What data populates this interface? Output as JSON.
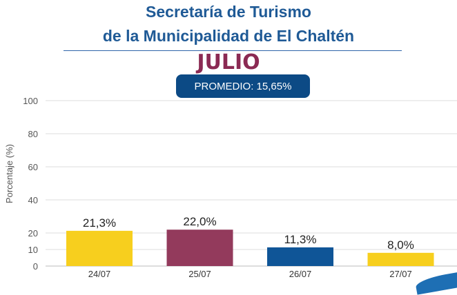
{
  "header": {
    "title_line1": "Secretaría de Turismo",
    "title_line2": "de la Municipalidad de El Chaltén",
    "month": "JULIO",
    "average_label": "PROMEDIO: 15,65%"
  },
  "colors": {
    "title": "#1f5a96",
    "month": "#8b2a53",
    "badge": "#0c4a85",
    "yellow": "#f7cf1e",
    "maroon": "#933a5c",
    "blue": "#0f5597"
  },
  "chart_data": {
    "type": "bar",
    "categories": [
      "24/07",
      "25/07",
      "26/07",
      "27/07"
    ],
    "values": [
      21.3,
      22.0,
      11.3,
      8.0
    ],
    "value_labels": [
      "21,3%",
      "22,0%",
      "11,3%",
      "8,0%"
    ],
    "bar_colors": [
      "#f7cf1e",
      "#933a5c",
      "#0f5597",
      "#f7cf1e"
    ],
    "ylabel": "Porcentaje (%)",
    "ylim": [
      0,
      100
    ],
    "yticks": [
      0,
      10,
      20,
      40,
      60,
      80,
      100
    ],
    "grid": true
  }
}
